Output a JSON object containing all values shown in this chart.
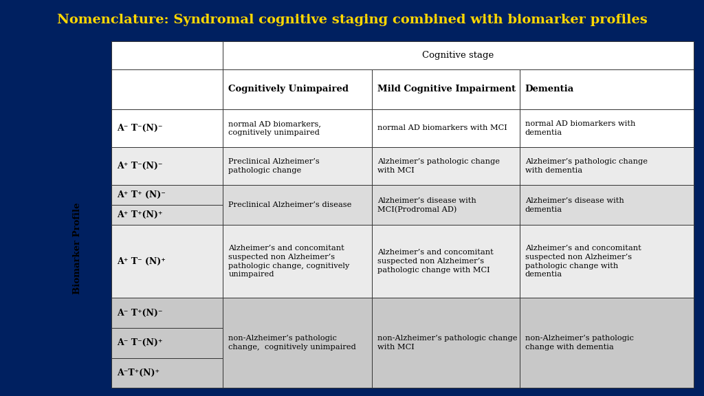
{
  "title": "Nomenclature: Syndromal cognitive staging combined with biomarker profiles",
  "title_color": "#FFD700",
  "background_color": "#002060",
  "table_bg": "#FFFFFF",
  "header_row1": "Cognitive stage",
  "header_row2_cols": [
    "Cognitively Unimpaired",
    "Mild Cognitive Impairment",
    "Dementia"
  ],
  "biomarker_label": "Biomarker Profile",
  "row_labels": [
    [
      "A⁻ T⁻(N)⁻"
    ],
    [
      "A⁺ T⁻(N)⁻"
    ],
    [
      "A⁺ T⁺ (N)⁻",
      "A⁺ T⁺(N)⁺"
    ],
    [
      "A⁺ T⁻ (N)⁺"
    ],
    [
      "A⁻ T⁺(N)⁻",
      "A⁻ T⁻(N)⁺",
      "A⁻T⁺(N)⁺"
    ]
  ],
  "cell_data": [
    [
      "normal AD biomarkers,\ncognitively unimpaired",
      "normal AD biomarkers with MCI",
      "normal AD biomarkers with\ndementia"
    ],
    [
      "Preclinical Alzheimer’s\npathologic change",
      "Alzheimer’s pathologic change\nwith MCI",
      "Alzheimer’s pathologic change\nwith dementia"
    ],
    [
      "Preclinical Alzheimer’s disease",
      "Alzheimer’s disease with\nMCI(Prodromal AD)",
      "Alzheimer’s disease with\ndementia"
    ],
    [
      "Alzheimer’s and concomitant\nsuspected non Alzheimer’s\npathologic change, cognitively\nunimpaired",
      "Alzheimer’s and concomitant\nsuspected non Alzheimer’s\npathologic change with MCI",
      "Alzheimer’s and concomitant\nsuspected non Alzheimer’s\npathologic change with\ndementia"
    ],
    [
      "non-Alzheimer’s pathologic\nchange,  cognitively unimpaired",
      "non-Alzheimer’s pathologic change\nwith MCI",
      "non-Alzheimer’s pathologic\nchange with dementia"
    ]
  ],
  "row_bg_colors": [
    "#FFFFFF",
    "#EBEBEB",
    "#DCDCDC",
    "#EBEBEB",
    "#C8C8C8"
  ],
  "header_bg": "#FFFFFF",
  "title_fontsize": 14,
  "body_fontsize": 8.2,
  "label_fontsize": 9.0,
  "header_fontsize": 9.5
}
